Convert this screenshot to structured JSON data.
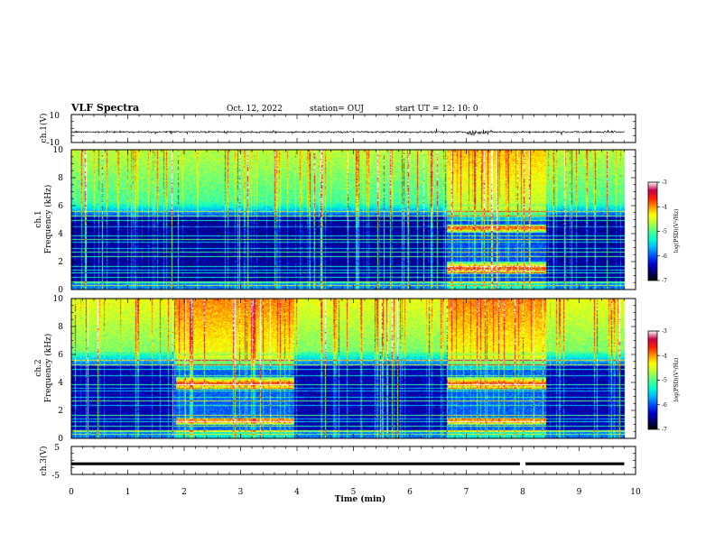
{
  "header": {
    "title": "VLF Spectra",
    "date": "Oct. 12, 2022",
    "station": "station= OUJ",
    "start_ut": "start  UT =   12: 10: 0"
  },
  "chart_data": [
    {
      "id": "ch1-waveform",
      "type": "line",
      "ylabel": "ch.1(V)",
      "ylim": [
        -10,
        10
      ],
      "yticks": [
        "10",
        "-10"
      ],
      "xlim": [
        0,
        10
      ],
      "baseline": -2.5
    },
    {
      "id": "ch1-spectrogram",
      "type": "heatmap",
      "ylabel": "ch.1 Frequency (kHz)",
      "ylabel_lines": [
        "ch.1",
        "Frequency (kHz)"
      ],
      "ylim": [
        0,
        10
      ],
      "yticks": [
        "0",
        "2",
        "4",
        "6",
        "8",
        "10"
      ],
      "xlim": [
        0,
        10
      ],
      "data_end_min": 9.8,
      "event_segments_min": [
        [
          6.65,
          8.4
        ]
      ],
      "event_bands_khz": [
        [
          1.1,
          2.0
        ],
        [
          4.1,
          4.7
        ]
      ],
      "colorbar": {
        "label": "log(PSD)(V²/Hz)",
        "range": [
          -7,
          -3
        ],
        "ticks": [
          "-3",
          "-4",
          "-5",
          "-6",
          "-7"
        ]
      }
    },
    {
      "id": "ch2-spectrogram",
      "type": "heatmap",
      "ylabel": "ch.2 Frequency (kHz)",
      "ylabel_lines": [
        "ch.2",
        "Frequency (kHz)"
      ],
      "ylim": [
        0,
        10
      ],
      "yticks": [
        "0",
        "2",
        "4",
        "6",
        "8",
        "10"
      ],
      "xlim": [
        0,
        10
      ],
      "data_end_min": 9.8,
      "event_segments_min": [
        [
          1.85,
          3.95
        ],
        [
          6.65,
          8.4
        ]
      ],
      "event_bands_khz": [
        [
          1.0,
          1.5
        ],
        [
          3.5,
          4.4
        ]
      ],
      "colorbar": {
        "label": "log(PSD)(V²/Hz)",
        "range": [
          -7,
          -3
        ],
        "ticks": [
          "-3",
          "-4",
          "-5",
          "-6",
          "-7"
        ]
      }
    },
    {
      "id": "ch3-waveform",
      "type": "line",
      "ylabel": "ch.3(V)",
      "ylim": [
        -5,
        5
      ],
      "yticks": [
        "5",
        "-5"
      ],
      "xlim": [
        0,
        10
      ],
      "baseline": -1.2,
      "xlabel": "Time (min)",
      "xticks": [
        "0",
        "1",
        "2",
        "3",
        "4",
        "5",
        "6",
        "7",
        "8",
        "9",
        "10"
      ]
    }
  ],
  "colors": {
    "colormap": [
      "#000000",
      "#00006e",
      "#0000d2",
      "#0050ff",
      "#00b4ff",
      "#00ffd2",
      "#50ff8c",
      "#b4ff3c",
      "#ffff00",
      "#ff9600",
      "#ff1e00",
      "#c8004b",
      "#ffffff"
    ]
  }
}
